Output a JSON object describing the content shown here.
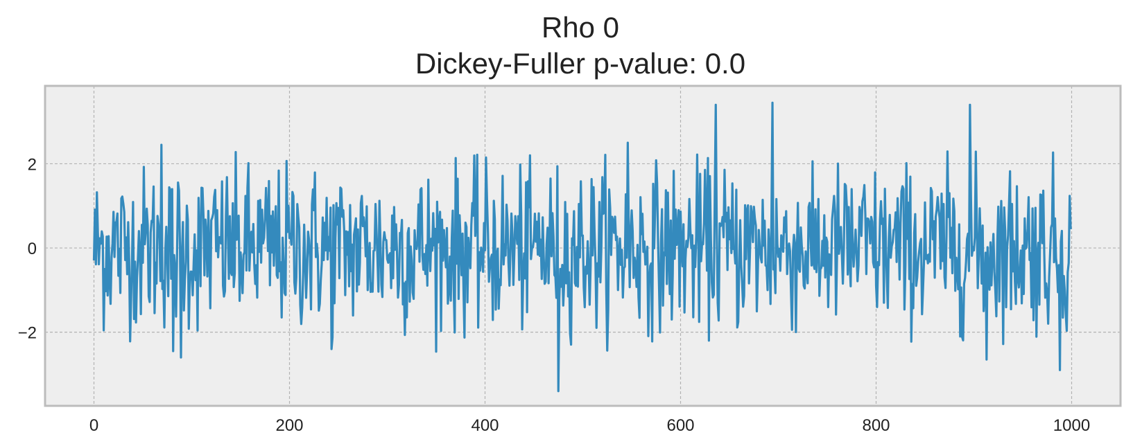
{
  "chart_data": {
    "type": "line",
    "title": "Rho 0",
    "subtitle": "Dickey-Fuller p-value: 0.0",
    "xlabel": "",
    "ylabel": "",
    "xlim": [
      -50,
      1050
    ],
    "ylim": [
      -3.75,
      3.85
    ],
    "x_ticks": [
      0,
      200,
      400,
      600,
      800,
      1000
    ],
    "x_tick_labels": [
      "0",
      "200",
      "400",
      "600",
      "800",
      "1000"
    ],
    "y_ticks": [
      -2,
      0,
      2
    ],
    "y_tick_labels": [
      "−2",
      "0",
      "2"
    ],
    "grid": true,
    "style": "bmh",
    "colors": {
      "line": "#348ABD",
      "plot_background": "#EEEEEE",
      "grid": "#B2B2B2",
      "frame": "#BCBCBC"
    },
    "series": [
      {
        "n_points": 1000,
        "x_start": 0,
        "x_step": 1,
        "notes_from_image": "white noise around 0, most values within about -2 to 2",
        "extrema": [
          {
            "x": 81,
            "y": -2.45
          },
          {
            "x": 89,
            "y": -2.6
          },
          {
            "x": 69,
            "y": 2.45
          },
          {
            "x": 243,
            "y": -2.4
          },
          {
            "x": 475,
            "y": -3.4
          },
          {
            "x": 546,
            "y": 2.5
          },
          {
            "x": 636,
            "y": 3.4
          },
          {
            "x": 694,
            "y": 3.45
          },
          {
            "x": 896,
            "y": 3.4
          },
          {
            "x": 913,
            "y": -2.65
          },
          {
            "x": 988,
            "y": -2.9
          }
        ]
      }
    ]
  }
}
